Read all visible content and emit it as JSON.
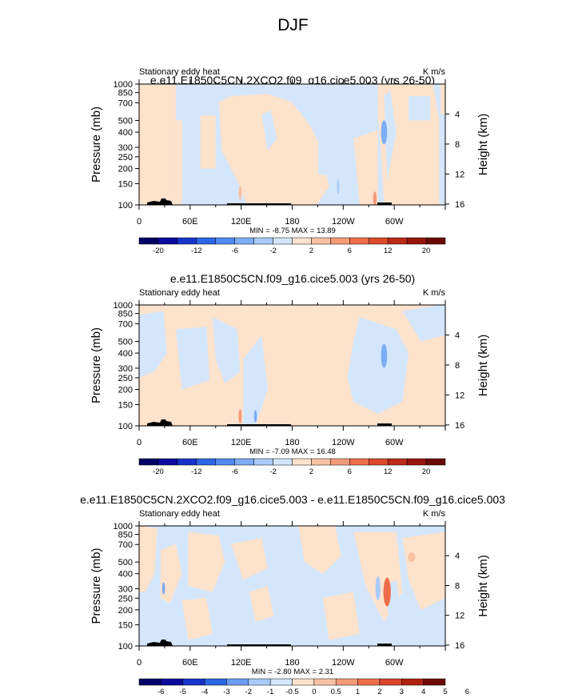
{
  "title": "DJF",
  "chart_data": [
    {
      "type": "heatmap",
      "title": "e.e11.E1850C5CN.2XCO2.f09_g16.cice5.003 (yrs 26-50)",
      "left_label": "Stationary eddy heat",
      "units": "K m/s",
      "ylabel": "Pressure (mb)",
      "ylabel_right": "Height (km)",
      "x_ticks": [
        "0",
        "60E",
        "120E",
        "180",
        "120W",
        "60W"
      ],
      "y_ticks": [
        "100",
        "150",
        "200",
        "250",
        "300",
        "400",
        "500",
        "700",
        "850",
        "1000"
      ],
      "y_ticks_right": [
        "16",
        "12",
        "8",
        "4"
      ],
      "minmax": "MIN = -8.75  MAX = 13.89",
      "min": -8.75,
      "max": 13.89,
      "colorbar_labels": [
        "-20",
        "-12",
        "-6",
        "-2",
        "2",
        "6",
        "12",
        "20"
      ],
      "ylim": [
        1000,
        100
      ],
      "xlim": [
        0,
        360
      ],
      "log_y": true
    },
    {
      "type": "heatmap",
      "title": "e.e11.E1850C5CN.f09_g16.cice5.003 (yrs 26-50)",
      "left_label": "Stationary eddy heat",
      "units": "K m/s",
      "ylabel": "Pressure (mb)",
      "ylabel_right": "Height (km)",
      "x_ticks": [
        "0",
        "60E",
        "120E",
        "180",
        "120W",
        "60W"
      ],
      "y_ticks": [
        "100",
        "150",
        "200",
        "250",
        "300",
        "400",
        "500",
        "700",
        "850",
        "1000"
      ],
      "y_ticks_right": [
        "16",
        "12",
        "8",
        "4"
      ],
      "minmax": "MIN = -7.09  MAX = 16.48",
      "min": -7.09,
      "max": 16.48,
      "colorbar_labels": [
        "-20",
        "-12",
        "-6",
        "-2",
        "2",
        "6",
        "12",
        "20"
      ],
      "ylim": [
        1000,
        100
      ],
      "xlim": [
        0,
        360
      ],
      "log_y": true
    },
    {
      "type": "heatmap",
      "title": "e.e11.E1850C5CN.2XCO2.f09_g16.cice5.003 - e.e11.E1850C5CN.f09_g16.cice5.003",
      "left_label": "Stationary eddy heat",
      "units": "K m/s",
      "ylabel": "Pressure (mb)",
      "ylabel_right": "Height (km)",
      "x_ticks": [
        "0",
        "60E",
        "120E",
        "180",
        "120W",
        "60W"
      ],
      "y_ticks": [
        "100",
        "150",
        "200",
        "250",
        "300",
        "400",
        "500",
        "700",
        "850",
        "1000"
      ],
      "y_ticks_right": [
        "16",
        "12",
        "8",
        "4"
      ],
      "minmax": "MIN = -2.80  MAX =  2.31",
      "min": -2.8,
      "max": 2.31,
      "colorbar_labels": [
        "-6",
        "-5",
        "-4",
        "-3",
        "-2",
        "-1",
        "-0.5",
        "0",
        "0.5",
        "1",
        "2",
        "3",
        "4",
        "5",
        "6"
      ],
      "ylim": [
        1000,
        100
      ],
      "xlim": [
        0,
        360
      ],
      "log_y": true
    }
  ],
  "colors": {
    "background": "#ffffff",
    "positive_light": "#fde2cc",
    "negative_light": "#d4e6fb",
    "terrain": "#000000",
    "colorbar_16": [
      "#010066",
      "#0a0a9c",
      "#1634cc",
      "#2b66e4",
      "#4f8bf0",
      "#7dadf6",
      "#a9cbfa",
      "#d4e6fb",
      "#fde2cc",
      "#f9c1a3",
      "#f59a77",
      "#ef6e4a",
      "#dc4a2a",
      "#bc2a18",
      "#97140d",
      "#6b0a05"
    ],
    "colorbar_14": [
      "#010066",
      "#0a0a9c",
      "#1634cc",
      "#2b66e4",
      "#6a9df2",
      "#a9cbfa",
      "#d4e6fb",
      "#fde2cc",
      "#f9c1a3",
      "#f59a77",
      "#ef6e4a",
      "#d8432a",
      "#b0220f",
      "#6b0a05"
    ]
  }
}
